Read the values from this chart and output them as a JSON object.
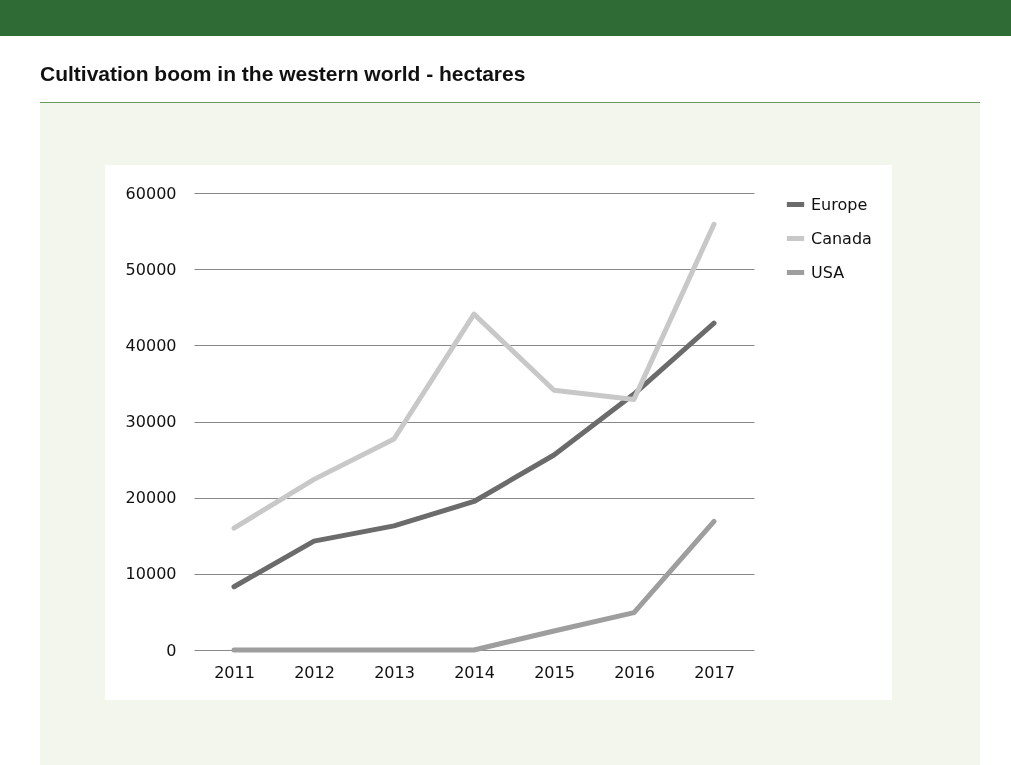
{
  "chart_data": {
    "type": "line",
    "title": "Cultivation boom in the western world - hectares",
    "categories": [
      "2011",
      "2012",
      "2013",
      "2014",
      "2015",
      "2016",
      "2017"
    ],
    "series": [
      {
        "name": "Europe",
        "color": "#6b6b6b",
        "values": [
          8300,
          14300,
          16300,
          19500,
          25600,
          33600,
          42900
        ]
      },
      {
        "name": "Canada",
        "color": "#c8c8c8",
        "values": [
          16000,
          22400,
          27700,
          44100,
          34100,
          32900,
          55900
        ]
      },
      {
        "name": "USA",
        "color": "#9e9e9e",
        "values": [
          0,
          0,
          0,
          0,
          2500,
          4900,
          16900
        ]
      }
    ],
    "ylim": [
      0,
      60000
    ],
    "yticks": [
      0,
      10000,
      20000,
      30000,
      40000,
      50000,
      60000
    ],
    "grid": "y",
    "legend": "right",
    "marker": "none",
    "line_style": "solid"
  }
}
